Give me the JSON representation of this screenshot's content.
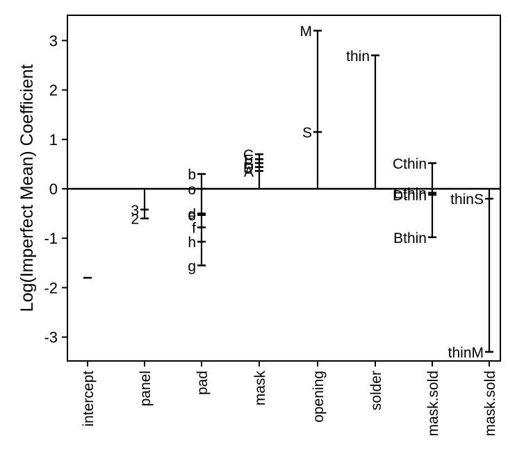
{
  "chart_data": {
    "type": "scatter",
    "ylabel": "Log(Imperfect Mean) Coefficient",
    "ylim": [
      -3.55,
      3.4
    ],
    "yticks": [
      -3,
      -2,
      -1,
      0,
      1,
      2,
      3
    ],
    "ytick_labels": [
      "-3",
      "-2",
      "-1",
      "0",
      "1",
      "2",
      "3"
    ],
    "categories": [
      "intercept",
      "panel",
      "pad",
      "mask",
      "opening",
      "solder",
      "mask.sold",
      "mask.sold"
    ],
    "groups": [
      {
        "category": "intercept",
        "points": [
          {
            "label": "",
            "y": -1.8
          }
        ]
      },
      {
        "category": "panel",
        "points": [
          {
            "label": "3",
            "y": -0.42
          },
          {
            "label": "2",
            "y": -0.6
          }
        ]
      },
      {
        "category": "pad",
        "points": [
          {
            "label": "b",
            "y": 0.3
          },
          {
            "label": "o",
            "y": 0.0
          },
          {
            "label": "d",
            "y": -0.5
          },
          {
            "label": "e",
            "y": -0.53
          },
          {
            "label": "f",
            "y": -0.78
          },
          {
            "label": "h",
            "y": -1.07
          },
          {
            "label": "g",
            "y": -1.55
          }
        ]
      },
      {
        "category": "mask",
        "points": [
          {
            "label": "C",
            "y": 0.7
          },
          {
            "label": "E",
            "y": 0.6
          },
          {
            "label": "B",
            "y": 0.52
          },
          {
            "label": "D",
            "y": 0.44
          },
          {
            "label": "A",
            "y": 0.36
          }
        ]
      },
      {
        "category": "opening",
        "points": [
          {
            "label": "M",
            "y": 3.2
          },
          {
            "label": "S",
            "y": 1.15
          }
        ]
      },
      {
        "category": "solder",
        "points": [
          {
            "label": "thin",
            "y": 2.7
          }
        ]
      },
      {
        "category": "mask.sold",
        "points": [
          {
            "label": "Cthin",
            "y": 0.52
          },
          {
            "label": "Ethin",
            "y": -0.08
          },
          {
            "label": "Dthin",
            "y": -0.12
          },
          {
            "label": "Bthin",
            "y": -0.98
          }
        ]
      },
      {
        "category": "mask.sold",
        "points": [
          {
            "label": "thinS",
            "y": -0.2
          },
          {
            "label": "thinM",
            "y": -3.3
          }
        ]
      }
    ]
  }
}
